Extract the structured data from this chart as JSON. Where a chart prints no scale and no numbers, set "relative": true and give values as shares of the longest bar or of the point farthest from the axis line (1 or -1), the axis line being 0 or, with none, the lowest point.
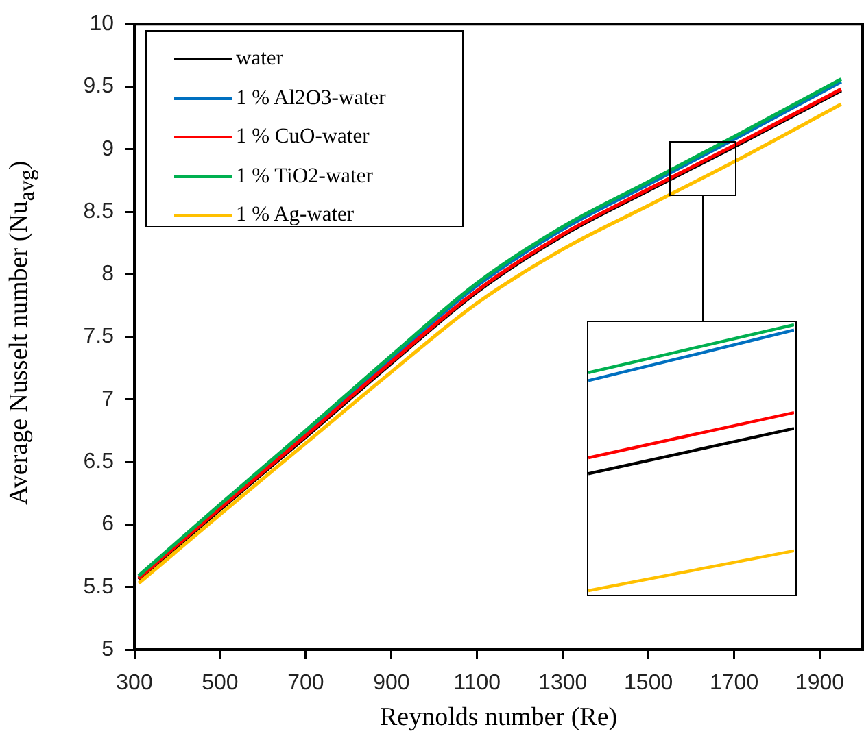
{
  "chart_data": [
    {
      "type": "line",
      "xlabel": "Reynolds number (Re)",
      "ylabel": "Average Nusselt number (Nu$_{avg}$)",
      "x": [
        310,
        500,
        700,
        900,
        1100,
        1300,
        1500,
        1700,
        1950
      ],
      "series": [
        {
          "name": "water",
          "color": "#000000",
          "values": [
            5.56,
            6.12,
            6.7,
            7.29,
            7.86,
            8.31,
            8.67,
            9.02,
            9.47
          ]
        },
        {
          "name": "1 % Al2O3-water",
          "color": "#0070c0",
          "values": [
            5.58,
            6.14,
            6.73,
            7.33,
            7.91,
            8.36,
            8.72,
            9.08,
            9.54
          ]
        },
        {
          "name": "1 % CuO-water",
          "color": "#ff0000",
          "values": [
            5.57,
            6.13,
            6.71,
            7.3,
            7.87,
            8.32,
            8.68,
            9.03,
            9.48
          ]
        },
        {
          "name": "1 % TiO2-water",
          "color": "#00b050",
          "values": [
            5.59,
            6.16,
            6.75,
            7.35,
            7.93,
            8.38,
            8.74,
            9.1,
            9.56
          ]
        },
        {
          "name": "1 % Ag-water",
          "color": "#ffc000",
          "values": [
            5.53,
            6.08,
            6.65,
            7.22,
            7.77,
            8.2,
            8.55,
            8.9,
            9.36
          ]
        }
      ],
      "xlim": [
        300,
        2000
      ],
      "xticks": [
        300,
        500,
        700,
        900,
        1100,
        1300,
        1500,
        1700,
        1900
      ],
      "ylim": [
        5,
        10
      ],
      "yticks": [
        5,
        5.5,
        6,
        6.5,
        7,
        7.5,
        8,
        8.5,
        9,
        9.5,
        10
      ],
      "legend": "top left",
      "grid": false
    },
    {
      "type": "line",
      "relative": true,
      "tick_labels": false,
      "categories": [
        null,
        null
      ],
      "series": [
        {
          "color": "#000000",
          "values": [
            0.44,
            0.61
          ]
        },
        {
          "color": "#0070c0",
          "values": [
            0.79,
            0.98
          ]
        },
        {
          "color": "#ff0000",
          "values": [
            0.5,
            0.67
          ]
        },
        {
          "color": "#00b050",
          "values": [
            0.82,
            1
          ]
        },
        {
          "color": "#ffc000",
          "values": [
            0,
            0.15
          ]
        }
      ]
    }
  ]
}
